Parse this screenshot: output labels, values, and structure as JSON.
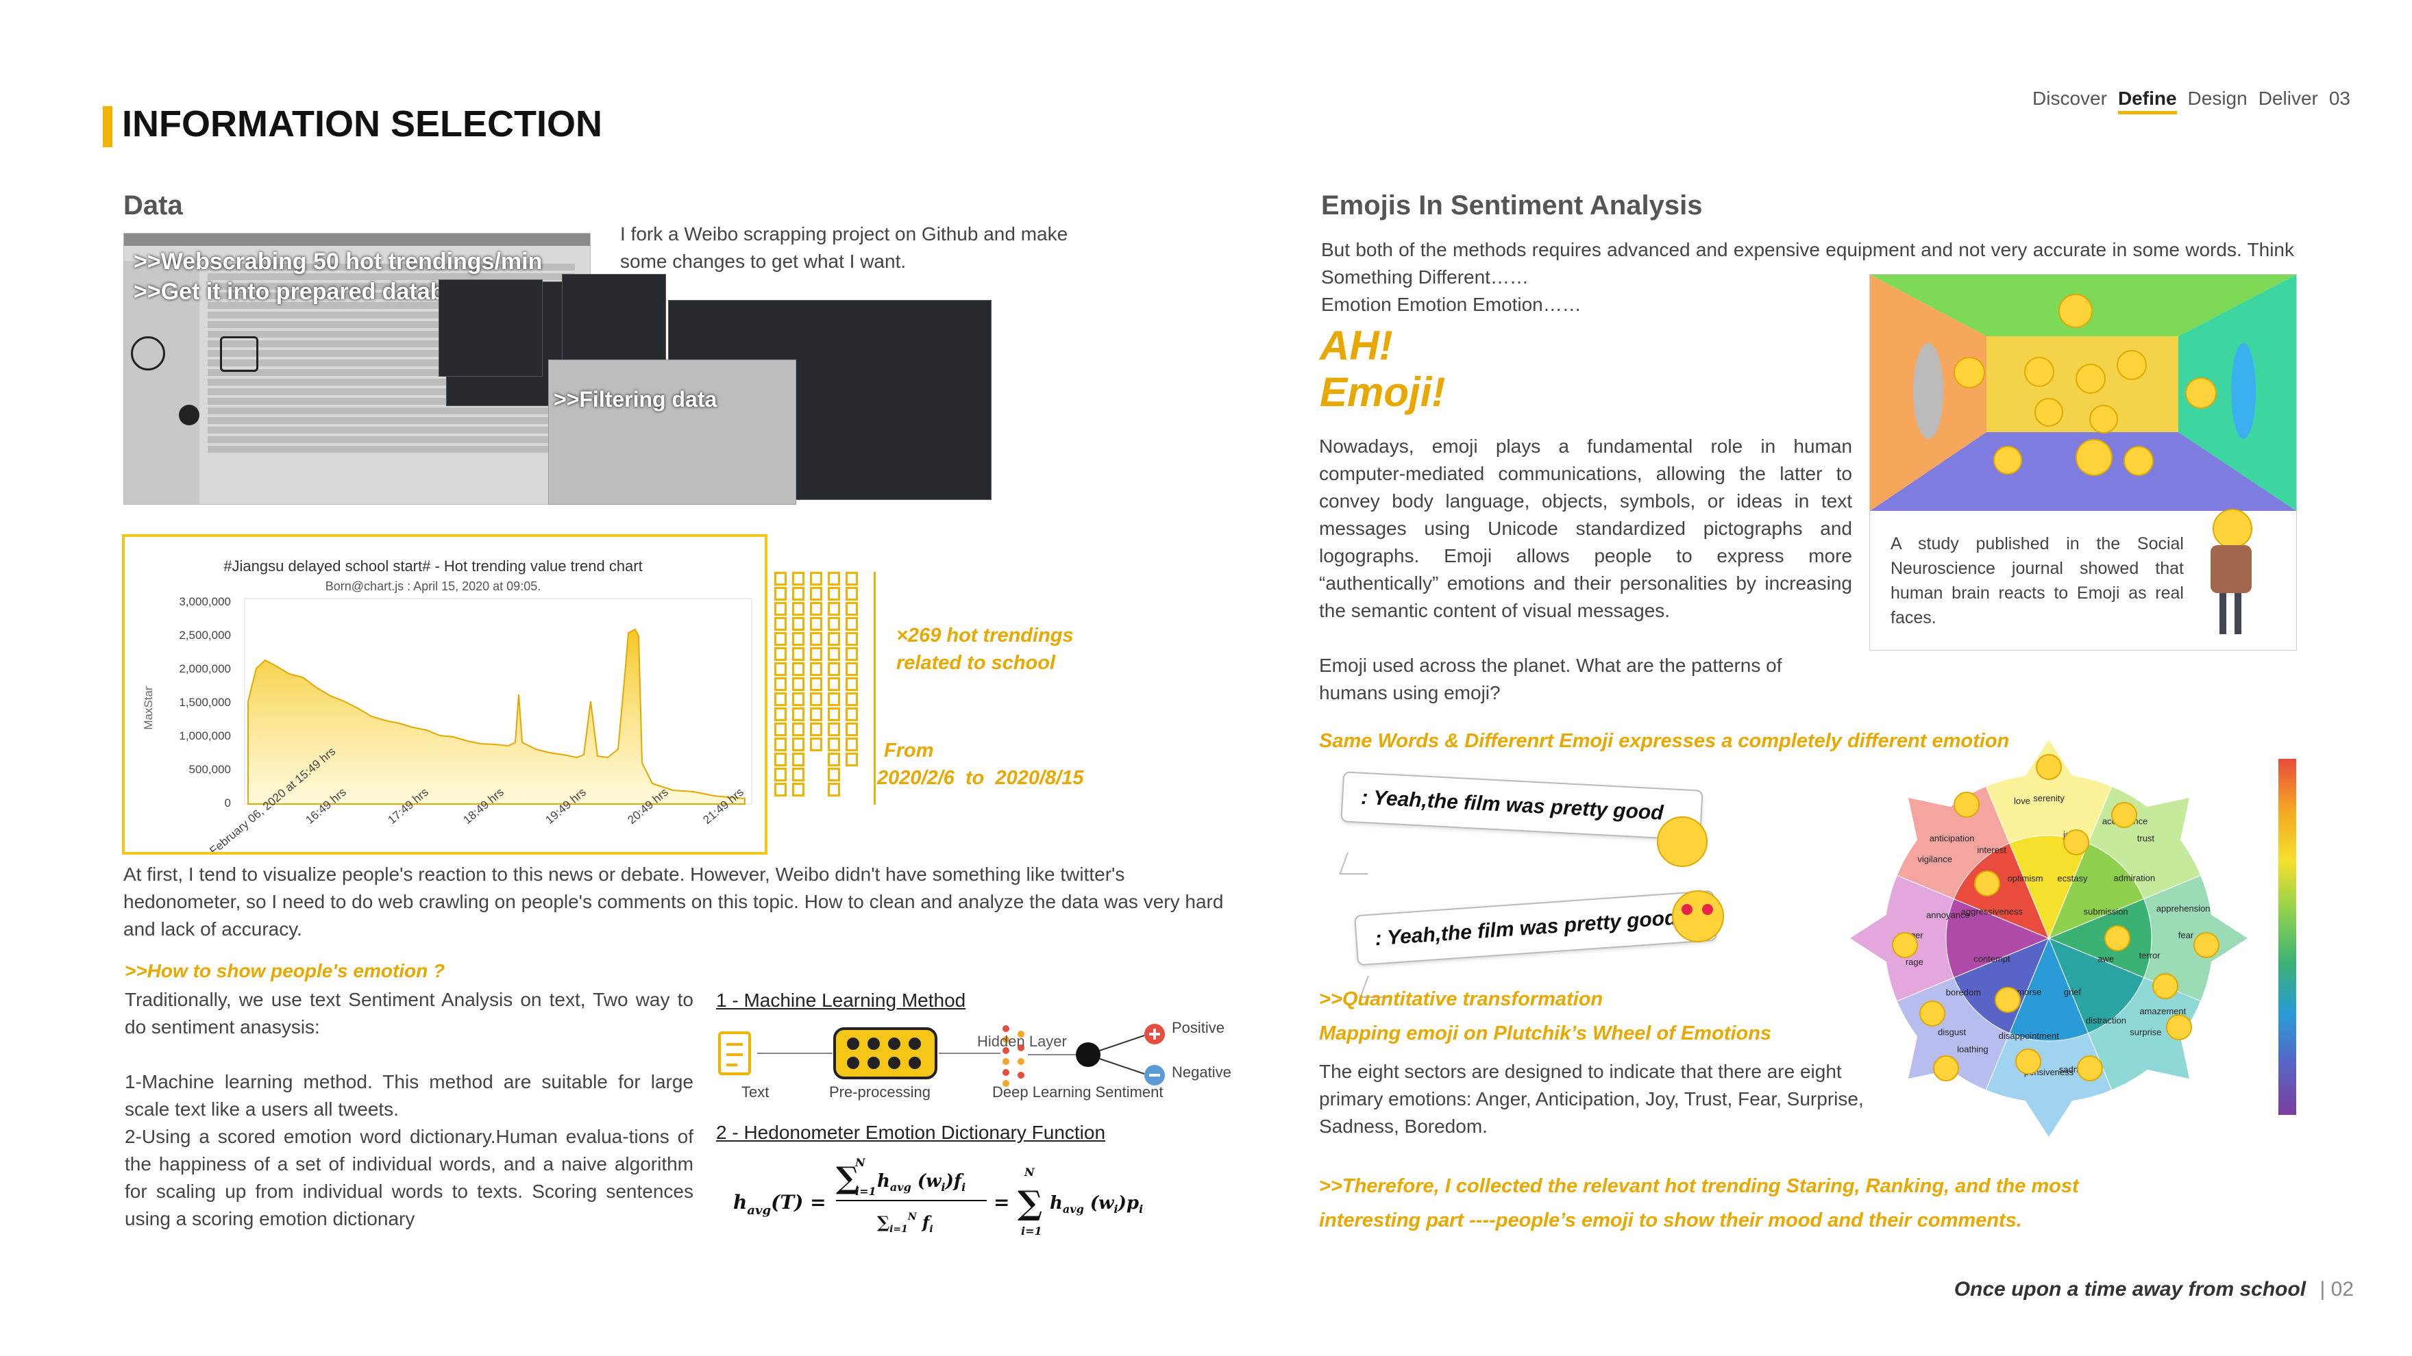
{
  "nav": {
    "items": [
      "Discover",
      "Define",
      "Design",
      "Deliver"
    ],
    "active": "Define",
    "page": "03"
  },
  "header": {
    "title": "INFORMATION SELECTION"
  },
  "left": {
    "section_title": "Data",
    "fork_text": "I fork a Weibo scrapping project on Github and make some changes to get what I want.",
    "screens": {
      "label1": ">>Webscrabing 50 hot trendings/min",
      "label2": ">>Get it into prepared database",
      "label3": ">>Filtering data"
    },
    "chart": {
      "title": "#Jiangsu delayed school start# - Hot trending value trend chart",
      "subtitle": "Born@chart.js : April 15, 2020 at 09:05.",
      "ylabel": "MaxStar"
    },
    "count_label": "×269 hot trendings related to school",
    "from_label": "From",
    "date_range": "2020/2/6  to  2020/8/15",
    "intro_para": "At first, I tend to visualize people's reaction to this news or debate. However, Weibo didn't have something like twitter's hedonometer, so I need to do web crawling on people's comments on this topic. How to clean and analyze the data  was very hard and lack of accuracy.",
    "how_heading": ">>How to show people's emotion ?",
    "trad_para": "Traditionally, we use text Sentiment Analysis on text, Two way to do sentiment anasysis:",
    "method1_para": "1-Machine learning method. This method are suitable for large scale text like a users all tweets.",
    "method2_para": "2-Using a scored emotion word dictionary.Human evalua-tions of the happiness of a set of individual words, and a naive algorithm for scaling up from individual words to texts. Scoring sentences using a scoring emotion dictionary",
    "ml_title": "1 - Machine Learning Method",
    "ml_labels": {
      "text": "Text",
      "pre": "Pre-processing",
      "hidden": "Hidden Layer",
      "deep": "Deep Learning Sentiment",
      "positive": "Positive",
      "negative": "Negative"
    },
    "hedo_title": "2 - Hedonometer Emotion Dictionary Function"
  },
  "right": {
    "section_title": "Emojis In Sentiment Analysis",
    "para1": "But both of the methods requires advanced and expensive equipment and not very accurate in some words. Think Something Different……",
    "para1b": "Emotion Emotion Emotion……",
    "ah": "AH!",
    "emoji_big": "Emoji!",
    "para2": "Nowadays, emoji plays a fundamental role in human computer-mediated communications, allowing the latter to convey body language, objects, symbols, or ideas in text messages using Unicode standardized pictographs and logographs. Emoji allows people to express more “authentically” emotions and their personalities by increasing the semantic content of visual messages.",
    "para3": "Emoji used across the planet. What are the patterns of humans using emoji?",
    "study_text": "A study published in the Social Neuroscience journal showed that human brain reacts to Emoji as real faces.",
    "same_words": "Same Words & Differenrt Emoji expresses a completely different emotion",
    "bubble1": ": Yeah,the film was pretty good",
    "bubble2": ": Yeah,the film was pretty good",
    "quant": ">>Quantitative transformation",
    "mapping": "Mapping emoji on Plutchik’s Wheel of Emotions",
    "sectors_para": "The eight sectors are designed to indicate that there are eight primary emotions: Anger, Anticipation, Joy, Trust, Fear,  Surprise, Sadness, Boredom.",
    "therefore": ">>Therefore, I collected the relevant hot trending Staring, Ranking, and the most interesting part ----people’s emoji to show their mood and their comments.",
    "wheel_labels": [
      "serenity",
      "joy",
      "ecstasy",
      "acceptance",
      "trust",
      "admiration",
      "submission",
      "apprehension",
      "fear",
      "terror",
      "awe",
      "amazement",
      "surprise",
      "distraction",
      "grief",
      "sadness",
      "pensiveness",
      "disappointment",
      "remorse",
      "loathing",
      "disgust",
      "boredom",
      "contempt",
      "rage",
      "anger",
      "annoyance",
      "aggressiveness",
      "vigilance",
      "anticipation",
      "interest",
      "optimism",
      "love"
    ]
  },
  "footer": {
    "tagline": "Once upon a time away from school",
    "page": "| 02"
  },
  "colors": {
    "accent": "#f0b400",
    "accent_text": "#e8a800"
  }
}
